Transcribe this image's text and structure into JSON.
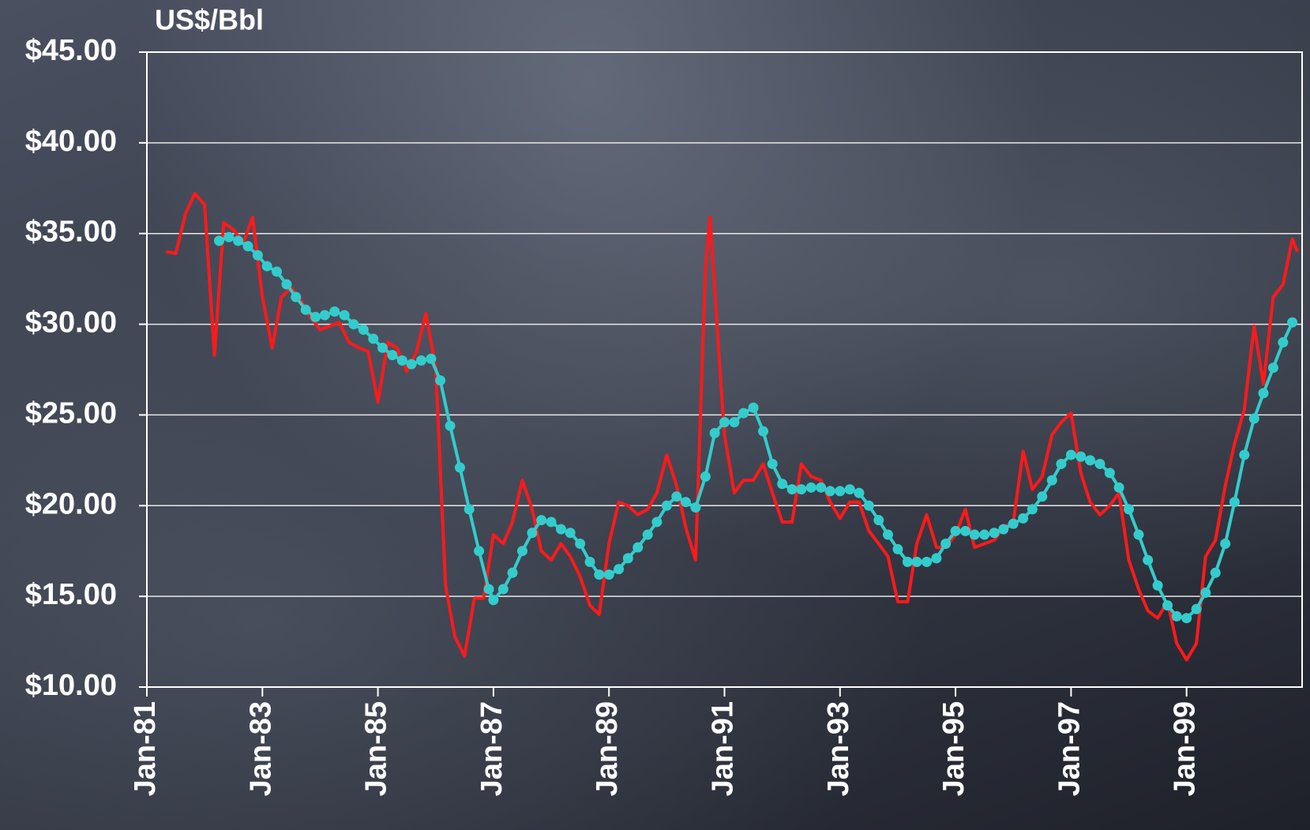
{
  "chart_data": {
    "type": "line",
    "y_label": "US$/Bbl",
    "xlim": [
      1981,
      2001
    ],
    "xticks": [
      {
        "value": 1981,
        "label": "Jan-81"
      },
      {
        "value": 1983,
        "label": "Jan-83"
      },
      {
        "value": 1985,
        "label": "Jan-85"
      },
      {
        "value": 1987,
        "label": "Jan-87"
      },
      {
        "value": 1989,
        "label": "Jan-89"
      },
      {
        "value": 1991,
        "label": "Jan-91"
      },
      {
        "value": 1993,
        "label": "Jan-93"
      },
      {
        "value": 1995,
        "label": "Jan-95"
      },
      {
        "value": 1997,
        "label": "Jan-97"
      },
      {
        "value": 1999,
        "label": "Jan-99"
      }
    ],
    "ylim": [
      10,
      45
    ],
    "yticks": [
      {
        "value": 10,
        "label": "$10.00"
      },
      {
        "value": 15,
        "label": "$15.00"
      },
      {
        "value": 20,
        "label": "$20.00"
      },
      {
        "value": 25,
        "label": "$25.00"
      },
      {
        "value": 30,
        "label": "$30.00"
      },
      {
        "value": 35,
        "label": "$35.00"
      },
      {
        "value": 40,
        "label": "$40.00"
      },
      {
        "value": 45,
        "label": "$45.00"
      }
    ],
    "grid": true,
    "series": [
      {
        "color": "#ff1a1a",
        "markers": false,
        "x": [
          1981.33,
          1981.5,
          1981.67,
          1981.83,
          1982,
          1982.17,
          1982.33,
          1982.5,
          1982.67,
          1982.83,
          1983,
          1983.17,
          1983.33,
          1983.5,
          1983.67,
          1983.83,
          1984,
          1984.17,
          1984.33,
          1984.5,
          1984.67,
          1984.83,
          1985,
          1985.17,
          1985.33,
          1985.5,
          1985.67,
          1985.83,
          1986,
          1986.17,
          1986.33,
          1986.5,
          1986.67,
          1986.83,
          1987,
          1987.17,
          1987.33,
          1987.5,
          1987.67,
          1987.83,
          1988,
          1988.17,
          1988.33,
          1988.5,
          1988.67,
          1988.83,
          1989,
          1989.17,
          1989.33,
          1989.5,
          1989.67,
          1989.83,
          1990,
          1990.17,
          1990.33,
          1990.5,
          1990.67,
          1990.75,
          1990.92,
          1991,
          1991.17,
          1991.33,
          1991.5,
          1991.67,
          1991.83,
          1992,
          1992.17,
          1992.33,
          1992.5,
          1992.67,
          1992.83,
          1993,
          1993.17,
          1993.33,
          1993.5,
          1993.67,
          1993.83,
          1994,
          1994.17,
          1994.33,
          1994.5,
          1994.67,
          1994.83,
          1995,
          1995.17,
          1995.33,
          1995.5,
          1995.67,
          1995.83,
          1996,
          1996.17,
          1996.33,
          1996.5,
          1996.67,
          1996.83,
          1997,
          1997.17,
          1997.33,
          1997.5,
          1997.67,
          1997.83,
          1998,
          1998.17,
          1998.33,
          1998.5,
          1998.67,
          1998.83,
          1999,
          1999.17,
          1999.33,
          1999.5,
          1999.67,
          1999.83,
          2000,
          2000.17,
          2000.33,
          2000.5,
          2000.67,
          2000.83,
          2000.92
        ],
        "values": [
          34.0,
          33.9,
          36.1,
          37.2,
          36.6,
          28.3,
          35.6,
          35.2,
          34.5,
          35.9,
          31.5,
          28.7,
          31.5,
          32.0,
          31.3,
          30.4,
          29.7,
          29.9,
          30.1,
          29.0,
          28.7,
          28.5,
          25.7,
          29.0,
          28.7,
          27.4,
          28.5,
          30.6,
          27.6,
          15.6,
          12.8,
          11.7,
          14.9,
          14.9,
          18.4,
          17.9,
          19.1,
          21.4,
          19.8,
          17.5,
          17.0,
          17.9,
          17.2,
          16.1,
          14.5,
          14.0,
          17.9,
          20.2,
          20.0,
          19.5,
          19.8,
          20.7,
          22.8,
          21.1,
          18.8,
          17.0,
          33.1,
          35.9,
          27.6,
          23.9,
          20.7,
          21.4,
          21.4,
          22.3,
          20.7,
          19.1,
          19.1,
          22.3,
          21.6,
          21.4,
          20.2,
          19.3,
          20.2,
          20.2,
          18.6,
          17.9,
          17.2,
          14.7,
          14.7,
          17.9,
          19.5,
          17.7,
          17.7,
          18.4,
          19.8,
          17.7,
          17.9,
          18.1,
          18.8,
          19.1,
          23.0,
          20.9,
          21.6,
          23.9,
          24.6,
          25.1,
          21.8,
          20.2,
          19.5,
          20.0,
          20.7,
          17.0,
          15.4,
          14.2,
          13.8,
          14.7,
          12.4,
          11.5,
          12.4,
          17.2,
          18.1,
          21.1,
          23.4,
          25.3,
          29.9,
          26.7,
          31.5,
          32.2,
          34.7,
          34.0
        ]
      },
      {
        "color": "#33cccc",
        "markers": true,
        "x": [
          1982.25,
          1982.42,
          1982.58,
          1982.75,
          1982.92,
          1983.08,
          1983.25,
          1983.42,
          1983.58,
          1983.75,
          1983.92,
          1984.08,
          1984.25,
          1984.42,
          1984.58,
          1984.75,
          1984.92,
          1985.08,
          1985.25,
          1985.42,
          1985.58,
          1985.75,
          1985.92,
          1986.08,
          1986.25,
          1986.42,
          1986.58,
          1986.75,
          1986.92,
          1987,
          1987.17,
          1987.33,
          1987.5,
          1987.67,
          1987.83,
          1988,
          1988.17,
          1988.33,
          1988.5,
          1988.67,
          1988.83,
          1989,
          1989.17,
          1989.33,
          1989.5,
          1989.67,
          1989.83,
          1990,
          1990.17,
          1990.33,
          1990.5,
          1990.67,
          1990.83,
          1991,
          1991.17,
          1991.33,
          1991.5,
          1991.67,
          1991.83,
          1992,
          1992.17,
          1992.33,
          1992.5,
          1992.67,
          1992.83,
          1993,
          1993.17,
          1993.33,
          1993.5,
          1993.67,
          1993.83,
          1994,
          1994.17,
          1994.33,
          1994.5,
          1994.67,
          1994.83,
          1995,
          1995.17,
          1995.33,
          1995.5,
          1995.67,
          1995.83,
          1996,
          1996.17,
          1996.33,
          1996.5,
          1996.67,
          1996.83,
          1997,
          1997.17,
          1997.33,
          1997.5,
          1997.67,
          1997.83,
          1998,
          1998.17,
          1998.33,
          1998.5,
          1998.67,
          1998.83,
          1999,
          1999.17,
          1999.33,
          1999.5,
          1999.67,
          1999.83,
          2000,
          2000.17,
          2000.33,
          2000.5,
          2000.67,
          2000.83
        ],
        "values": [
          34.6,
          34.8,
          34.6,
          34.3,
          33.8,
          33.2,
          32.9,
          32.2,
          31.5,
          30.8,
          30.4,
          30.5,
          30.7,
          30.5,
          30.0,
          29.7,
          29.2,
          28.7,
          28.3,
          28.0,
          27.8,
          28.0,
          28.1,
          26.9,
          24.4,
          22.1,
          19.8,
          17.5,
          15.4,
          14.8,
          15.4,
          16.3,
          17.5,
          18.5,
          19.2,
          19.1,
          18.7,
          18.5,
          17.9,
          16.9,
          16.2,
          16.2,
          16.5,
          17.1,
          17.7,
          18.4,
          19.1,
          20.0,
          20.5,
          20.2,
          19.9,
          21.6,
          24.0,
          24.6,
          24.6,
          25.1,
          25.4,
          24.1,
          22.3,
          21.2,
          20.9,
          20.9,
          21.0,
          21.0,
          20.8,
          20.8,
          20.9,
          20.7,
          20.0,
          19.2,
          18.4,
          17.6,
          16.9,
          16.9,
          16.9,
          17.1,
          17.9,
          18.6,
          18.6,
          18.4,
          18.4,
          18.5,
          18.7,
          19.0,
          19.3,
          19.8,
          20.5,
          21.4,
          22.3,
          22.8,
          22.7,
          22.5,
          22.3,
          21.8,
          21.0,
          19.8,
          18.4,
          17.0,
          15.6,
          14.5,
          13.9,
          13.8,
          14.3,
          15.2,
          16.3,
          17.9,
          20.2,
          22.8,
          24.8,
          26.2,
          27.6,
          29.0,
          30.1
        ]
      }
    ]
  }
}
